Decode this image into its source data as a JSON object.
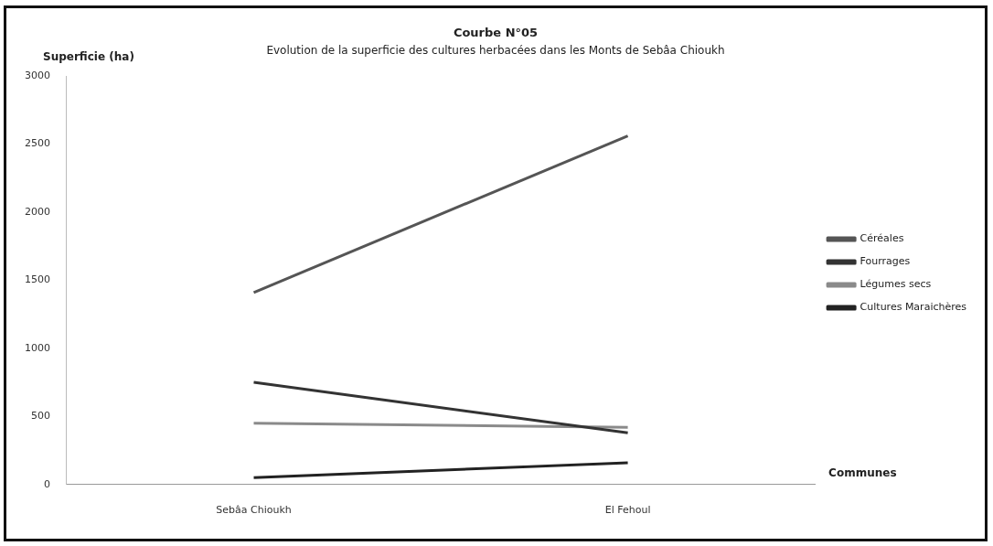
{
  "chart_data": {
    "type": "line",
    "title": "Courbe N°05",
    "subtitle": "Evolution de la superficie des cultures herbacées dans les Monts de Sebâa Chioukh",
    "ylabel": "Superficie (ha)",
    "xlabel": "Communes",
    "categories": [
      "Sebâa Chioukh",
      "El Fehoul"
    ],
    "series": [
      {
        "name": "Céréales",
        "color": "#555555",
        "values": [
          1410,
          2560
        ]
      },
      {
        "name": "Fourrages",
        "color": "#333333",
        "values": [
          750,
          380
        ]
      },
      {
        "name": "Légumes secs",
        "color": "#8a8a8a",
        "values": [
          450,
          420
        ]
      },
      {
        "name": "Cultures Maraichères",
        "color": "#222222",
        "values": [
          50,
          160
        ]
      }
    ],
    "ylim": [
      0,
      3000
    ],
    "yticks": [
      0,
      500,
      1000,
      1500,
      2000,
      2500,
      3000
    ],
    "grid": false,
    "legend": "right",
    "marker": "none"
  }
}
